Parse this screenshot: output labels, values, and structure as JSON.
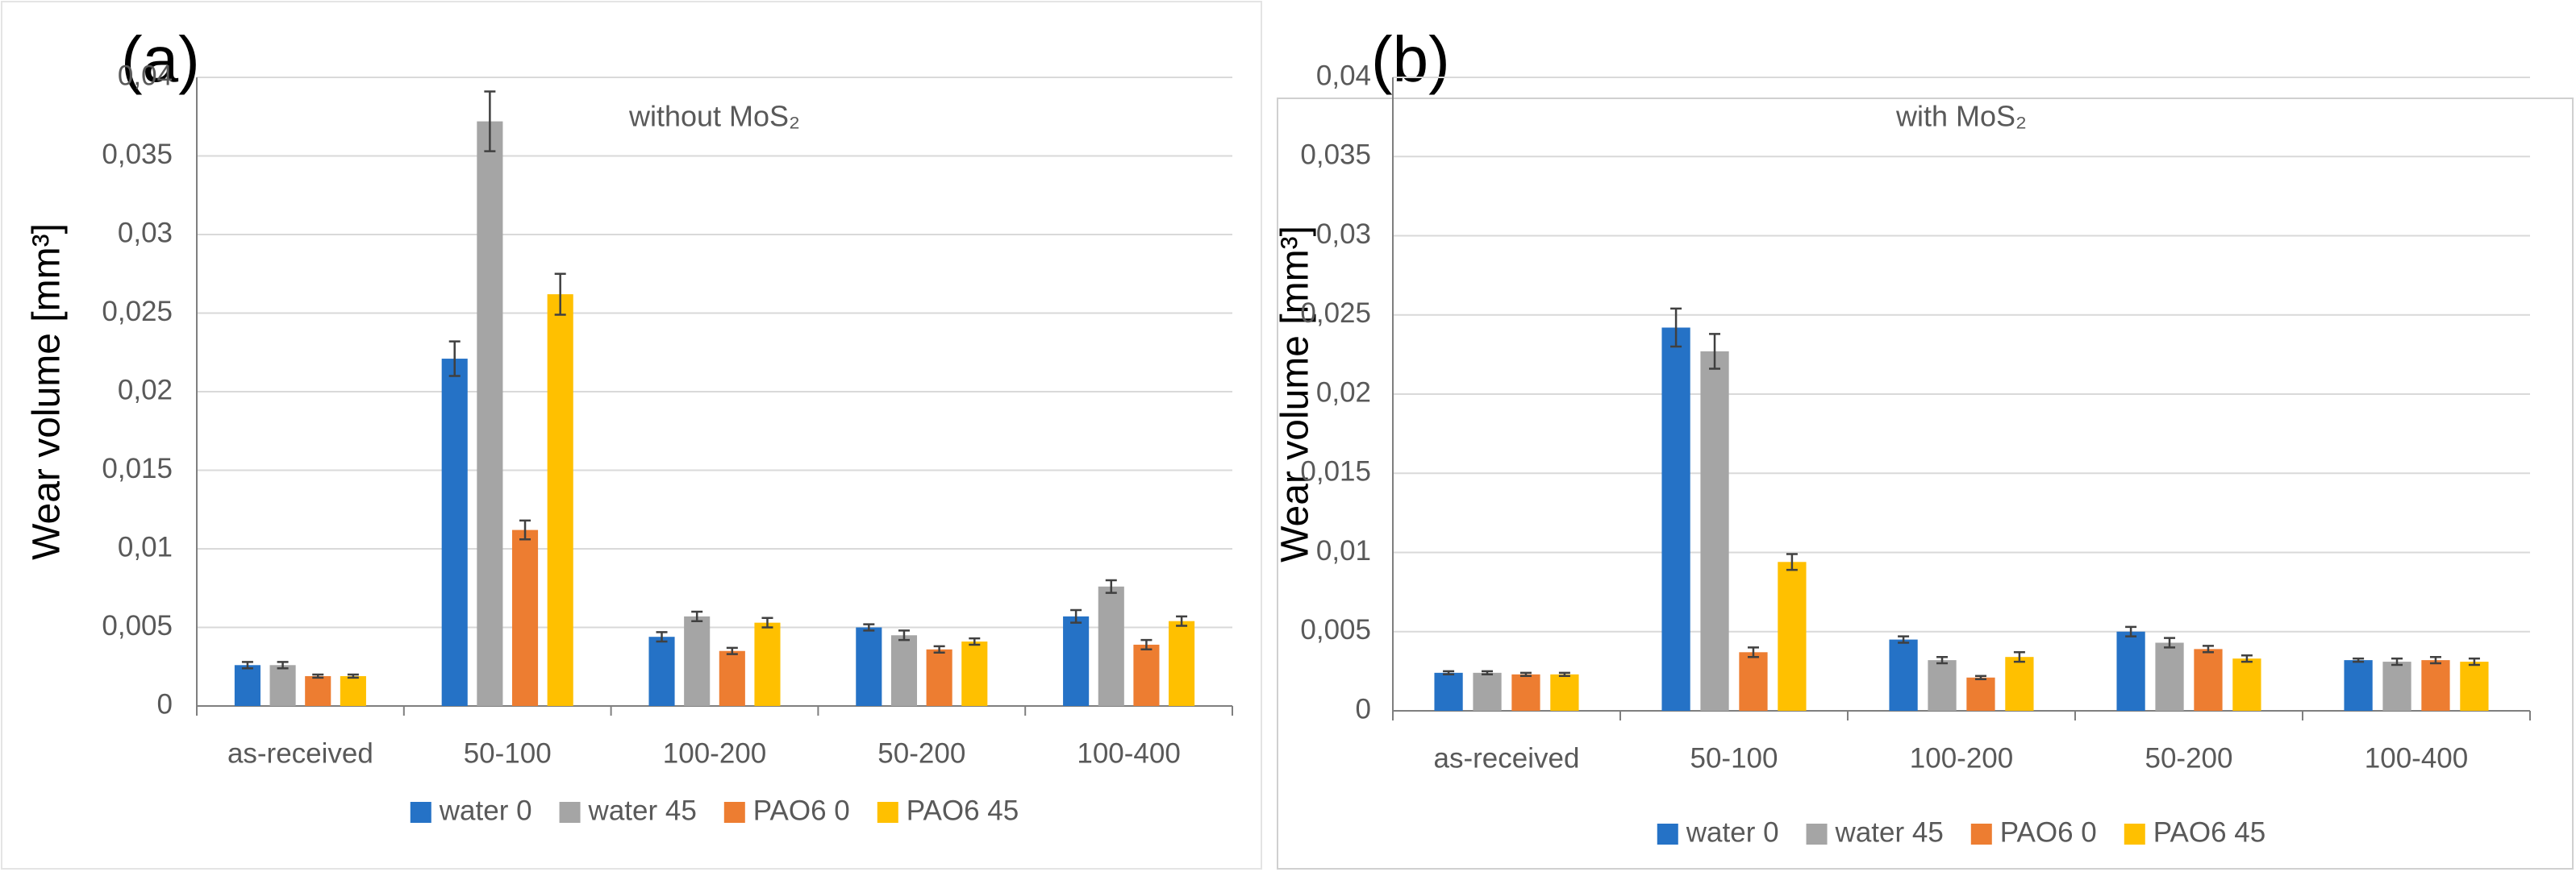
{
  "chart_data": [
    {
      "type": "bar",
      "annotation": "(a)",
      "title": "without MoS₂",
      "ylabel": "Wear volume [mm³]",
      "categories": [
        "as-received",
        "50-100",
        "100-200",
        "50-200",
        "100-400"
      ],
      "series": [
        {
          "name": "water 0",
          "color": "#2572c6",
          "values": [
            0.0026,
            0.0221,
            0.0044,
            0.005,
            0.0057
          ],
          "errors": [
            0.0002,
            0.0011,
            0.0003,
            0.0002,
            0.0004
          ]
        },
        {
          "name": "water 45",
          "color": "#a5a5a5",
          "values": [
            0.0026,
            0.0372,
            0.0057,
            0.0045,
            0.0076
          ],
          "errors": [
            0.0002,
            0.0019,
            0.0003,
            0.0003,
            0.0004
          ]
        },
        {
          "name": "PAO6 0",
          "color": "#ed7d31",
          "values": [
            0.0019,
            0.0112,
            0.0035,
            0.0036,
            0.0039
          ],
          "errors": [
            0.0001,
            0.0006,
            0.0002,
            0.0002,
            0.0003
          ]
        },
        {
          "name": "PAO6 45",
          "color": "#ffc000",
          "values": [
            0.0019,
            0.0262,
            0.0053,
            0.0041,
            0.0054
          ],
          "errors": [
            0.0001,
            0.0013,
            0.0003,
            0.0002,
            0.0003
          ]
        }
      ],
      "ylim": [
        0,
        0.04
      ],
      "yticks": [
        0,
        {
          "value": 0.005,
          "label": "0,005"
        },
        {
          "value": 0.01,
          "label": "0,01"
        },
        {
          "value": 0.015,
          "label": "0,015"
        },
        {
          "value": 0.02,
          "label": "0,02"
        },
        {
          "value": 0.025,
          "label": "0,025"
        },
        {
          "value": 0.03,
          "label": "0,03"
        },
        {
          "value": 0.035,
          "label": "0,035"
        },
        {
          "value": 0.04,
          "label": "0,04"
        }
      ],
      "grid": true,
      "legend": "bottom"
    },
    {
      "type": "bar",
      "annotation": "(b)",
      "title": "with MoS₂",
      "ylabel": "Wear volume [mm³]",
      "categories": [
        "as-received",
        "50-100",
        "100-200",
        "50-200",
        "100-400"
      ],
      "series": [
        {
          "name": "water 0",
          "color": "#2572c6",
          "values": [
            0.0024,
            0.0242,
            0.0045,
            0.005,
            0.0032
          ],
          "errors": [
            0.0001,
            0.0012,
            0.0002,
            0.0003,
            0.0001
          ]
        },
        {
          "name": "water 45",
          "color": "#a5a5a5",
          "values": [
            0.0024,
            0.0227,
            0.0032,
            0.0043,
            0.0031
          ],
          "errors": [
            0.0001,
            0.0011,
            0.0002,
            0.0003,
            0.0002
          ]
        },
        {
          "name": "PAO6 0",
          "color": "#ed7d31",
          "values": [
            0.0023,
            0.0037,
            0.0021,
            0.0039,
            0.0032
          ],
          "errors": [
            0.0001,
            0.0003,
            0.0001,
            0.0002,
            0.0002
          ]
        },
        {
          "name": "PAO6 45",
          "color": "#ffc000",
          "values": [
            0.0023,
            0.0094,
            0.0034,
            0.0033,
            0.0031
          ],
          "errors": [
            0.0001,
            0.0005,
            0.0003,
            0.0002,
            0.0002
          ]
        }
      ],
      "ylim": [
        0,
        0.04
      ],
      "yticks": [
        0,
        {
          "value": 0.005,
          "label": "0,005"
        },
        {
          "value": 0.01,
          "label": "0,01"
        },
        {
          "value": 0.015,
          "label": "0,015"
        },
        {
          "value": 0.02,
          "label": "0,02"
        },
        {
          "value": 0.025,
          "label": "0,025"
        },
        {
          "value": 0.03,
          "label": "0,03"
        },
        {
          "value": 0.035,
          "label": "0,035"
        },
        {
          "value": 0.04,
          "label": "0,04"
        }
      ],
      "grid": true,
      "legend": "bottom"
    }
  ]
}
